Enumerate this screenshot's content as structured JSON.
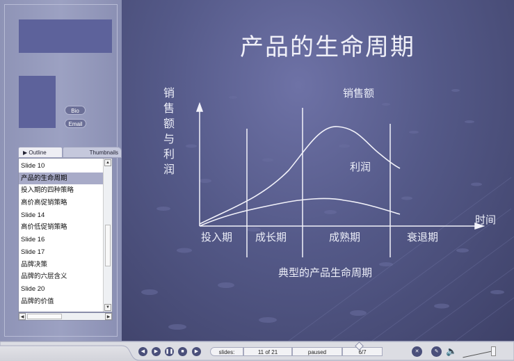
{
  "sidebar": {
    "bio_label": "Bio",
    "email_label": "Email",
    "tabs": {
      "outline": "▶ Outline",
      "thumbnails": "Thumbnails"
    },
    "slides": [
      "Slide 10",
      "产品的生命周期",
      "投入期的四种策略",
      "高价高促销策略",
      "Slide 14",
      "高价低促销策略",
      "Slide 16",
      "Slide 17",
      "品牌决策",
      "品牌的六层含义",
      "Slide 20",
      "品牌的价值"
    ],
    "selected_index": 1
  },
  "slide": {
    "title": "产品的生命周期",
    "y_axis_label": [
      "销",
      "售",
      "额",
      "与",
      "利",
      "润"
    ],
    "sales_label": "销售额",
    "profit_label": "利润",
    "time_label": "时间",
    "stages": [
      "投入期",
      "成长期",
      "成熟期",
      "衰退期"
    ],
    "caption": "典型的产品生命周期"
  },
  "controls": {
    "slides_label": "slides:",
    "slide_position": "11 of 21",
    "status": "paused",
    "animation_step": "6/7"
  },
  "colors": {
    "sidebar_box": "#5d629b",
    "slide_bg": "#545988",
    "selection": "#a8abc8",
    "control_button": "#4a4f7a"
  }
}
